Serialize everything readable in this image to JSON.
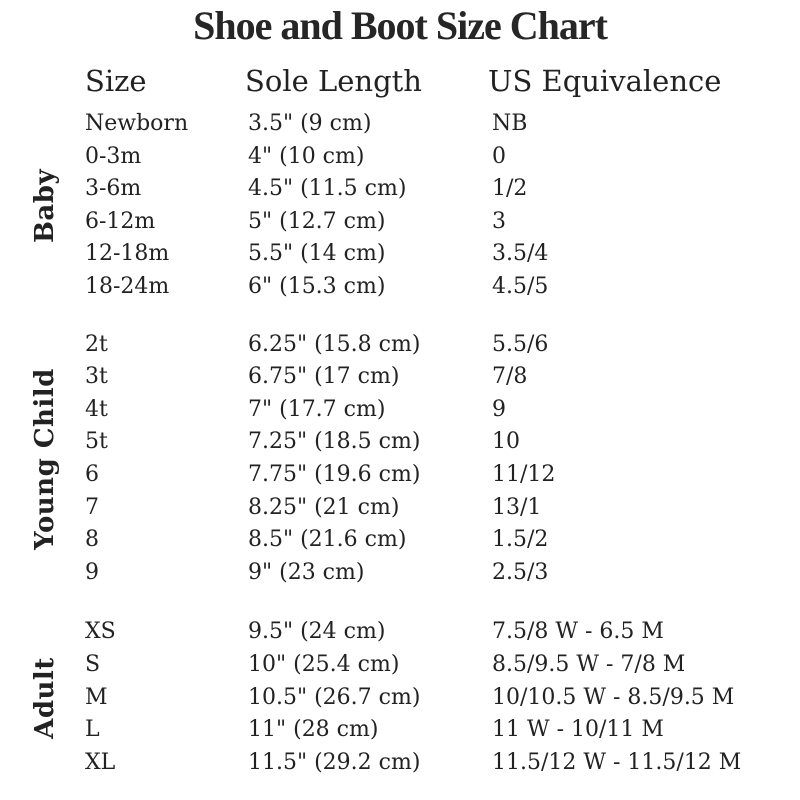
{
  "title": "Shoe and Boot Size Chart",
  "columns": [
    "Size",
    "Sole Length",
    "US Equivalence"
  ],
  "sections": [
    {
      "label": "Baby",
      "rows": [
        [
          "Newborn",
          "3.5\" (9 cm)",
          "NB"
        ],
        [
          "0-3m",
          "4\" (10 cm)",
          "0"
        ],
        [
          "3-6m",
          "4.5\" (11.5 cm)",
          "1/2"
        ],
        [
          "6-12m",
          "5\" (12.7 cm)",
          "3"
        ],
        [
          "12-18m",
          "5.5\" (14 cm)",
          "3.5/4"
        ],
        [
          "18-24m",
          "6\" (15.3 cm)",
          "4.5/5"
        ]
      ]
    },
    {
      "label": "Young Child",
      "rows": [
        [
          "2t",
          "6.25\" (15.8 cm)",
          "5.5/6"
        ],
        [
          "3t",
          "6.75\" (17 cm)",
          "7/8"
        ],
        [
          "4t",
          "7\" (17.7 cm)",
          "9"
        ],
        [
          "5t",
          "7.25\" (18.5 cm)",
          "10"
        ],
        [
          "6",
          "7.75\" (19.6 cm)",
          "11/12"
        ],
        [
          "7",
          "8.25\" (21 cm)",
          "13/1"
        ],
        [
          "8",
          "8.5\" (21.6 cm)",
          "1.5/2"
        ],
        [
          "9",
          "9\" (23 cm)",
          "2.5/3"
        ]
      ]
    },
    {
      "label": "Adult",
      "rows": [
        [
          "XS",
          "9.5\" (24 cm)",
          "7.5/8 W - 6.5 M"
        ],
        [
          "S",
          "10\" (25.4 cm)",
          "8.5/9.5 W - 7/8 M"
        ],
        [
          "M",
          "10.5\" (26.7 cm)",
          "10/10.5 W - 8.5/9.5 M"
        ],
        [
          "L",
          "11\" (28 cm)",
          "11 W - 10/11 M"
        ],
        [
          "XL",
          "11.5\" (29.2 cm)",
          "11.5/12 W - 11.5/12 M"
        ]
      ]
    }
  ],
  "colors": {
    "text": "#222222",
    "title_text": "#262626",
    "background": "#ffffff"
  }
}
